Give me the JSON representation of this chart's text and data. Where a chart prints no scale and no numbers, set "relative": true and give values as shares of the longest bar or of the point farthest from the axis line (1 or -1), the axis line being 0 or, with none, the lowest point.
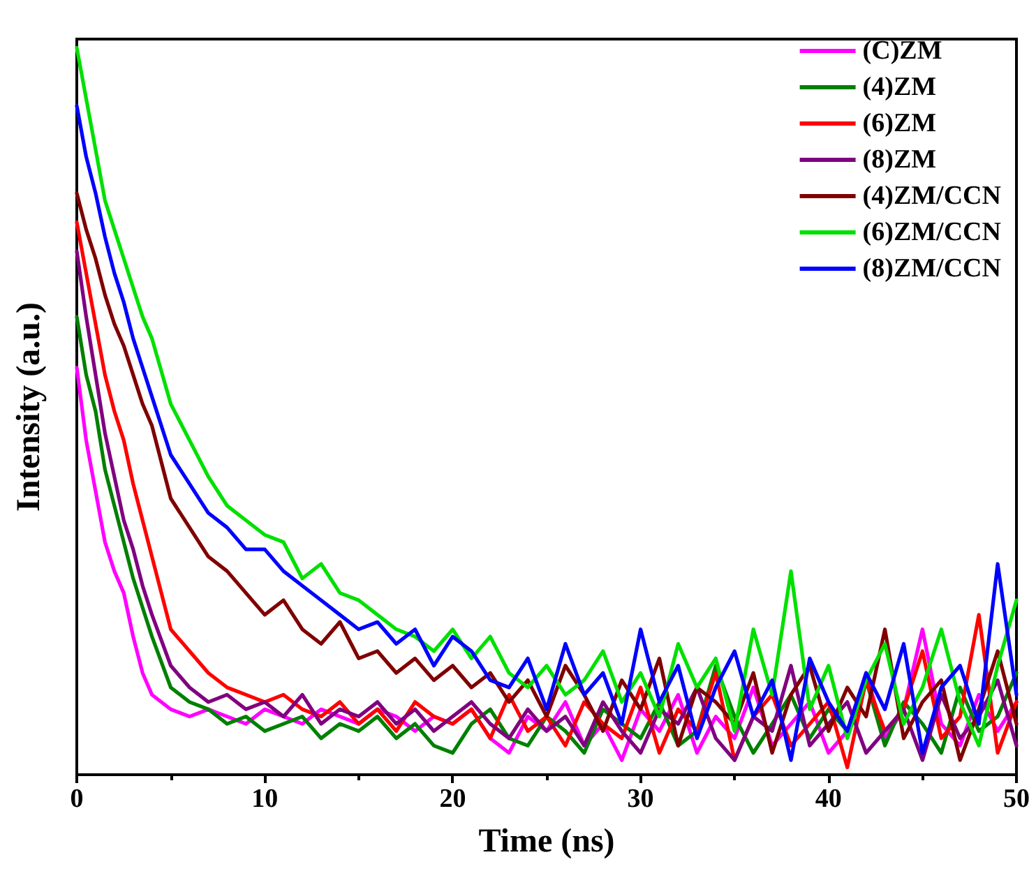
{
  "chart_data": {
    "type": "line",
    "relative": true,
    "xlabel": "Time (ns)",
    "ylabel": "Intensity (a.u.)",
    "xlim": [
      0,
      50
    ],
    "xticks": [
      0,
      10,
      20,
      30,
      40,
      50
    ],
    "grid": false,
    "legend": "top right",
    "marker": "none",
    "line_style": "solid",
    "x": [
      0,
      0.5,
      1,
      1.5,
      2,
      2.5,
      3,
      3.5,
      4,
      5,
      6,
      7,
      8,
      9,
      10,
      11,
      12,
      13,
      14,
      15,
      16,
      17,
      18,
      19,
      20,
      21,
      22,
      23,
      24,
      25,
      26,
      27,
      28,
      29,
      30,
      31,
      32,
      33,
      34,
      35,
      36,
      37,
      38,
      39,
      40,
      41,
      42,
      43,
      44,
      45,
      46,
      47,
      48,
      49,
      50
    ],
    "series": [
      {
        "name": "(C)ZM",
        "color": "#ff00ff",
        "values": [
          0.56,
          0.46,
          0.39,
          0.32,
          0.28,
          0.25,
          0.19,
          0.14,
          0.11,
          0.09,
          0.08,
          0.09,
          0.08,
          0.07,
          0.09,
          0.08,
          0.07,
          0.09,
          0.08,
          0.07,
          0.09,
          0.08,
          0.06,
          0.08,
          0.07,
          0.09,
          0.05,
          0.03,
          0.08,
          0.06,
          0.1,
          0.04,
          0.07,
          0.02,
          0.09,
          0.06,
          0.11,
          0.03,
          0.08,
          0.05,
          0.12,
          0.04,
          0.07,
          0.1,
          0.03,
          0.06,
          0.14,
          0.05,
          0.09,
          0.2,
          0.07,
          0.04,
          0.11,
          0.06,
          0.1
        ]
      },
      {
        "name": "(4)ZM",
        "color": "#008000",
        "values": [
          0.63,
          0.55,
          0.5,
          0.42,
          0.37,
          0.32,
          0.27,
          0.23,
          0.19,
          0.12,
          0.1,
          0.09,
          0.07,
          0.08,
          0.06,
          0.07,
          0.08,
          0.05,
          0.07,
          0.06,
          0.08,
          0.05,
          0.07,
          0.04,
          0.03,
          0.07,
          0.09,
          0.05,
          0.04,
          0.08,
          0.06,
          0.03,
          0.09,
          0.07,
          0.05,
          0.1,
          0.04,
          0.06,
          0.15,
          0.08,
          0.03,
          0.07,
          0.11,
          0.05,
          0.09,
          0.06,
          0.13,
          0.04,
          0.1,
          0.07,
          0.03,
          0.12,
          0.06,
          0.08,
          0.14
        ]
      },
      {
        "name": "(6)ZM",
        "color": "#ff0000",
        "values": [
          0.76,
          0.69,
          0.62,
          0.55,
          0.5,
          0.46,
          0.4,
          0.35,
          0.3,
          0.2,
          0.17,
          0.14,
          0.12,
          0.11,
          0.1,
          0.11,
          0.09,
          0.08,
          0.1,
          0.07,
          0.09,
          0.06,
          0.1,
          0.08,
          0.07,
          0.09,
          0.05,
          0.11,
          0.06,
          0.08,
          0.04,
          0.1,
          0.07,
          0.05,
          0.12,
          0.03,
          0.09,
          0.06,
          0.14,
          0.02,
          0.08,
          0.11,
          0.04,
          0.07,
          0.1,
          0.01,
          0.13,
          0.06,
          0.09,
          0.17,
          0.05,
          0.08,
          0.22,
          0.03,
          0.1
        ]
      },
      {
        "name": "(8)ZM",
        "color": "#800080",
        "values": [
          0.72,
          0.63,
          0.55,
          0.47,
          0.41,
          0.35,
          0.31,
          0.26,
          0.22,
          0.15,
          0.12,
          0.1,
          0.11,
          0.09,
          0.1,
          0.08,
          0.11,
          0.07,
          0.09,
          0.08,
          0.1,
          0.07,
          0.09,
          0.06,
          0.08,
          0.1,
          0.07,
          0.05,
          0.09,
          0.06,
          0.08,
          0.04,
          0.1,
          0.06,
          0.03,
          0.09,
          0.07,
          0.12,
          0.05,
          0.02,
          0.08,
          0.06,
          0.15,
          0.04,
          0.07,
          0.1,
          0.03,
          0.06,
          0.09,
          0.02,
          0.11,
          0.05,
          0.08,
          0.13,
          0.04
        ]
      },
      {
        "name": "(4)ZM/CCN",
        "color": "#800000",
        "values": [
          0.8,
          0.75,
          0.71,
          0.66,
          0.62,
          0.59,
          0.55,
          0.51,
          0.48,
          0.38,
          0.34,
          0.3,
          0.28,
          0.25,
          0.22,
          0.24,
          0.2,
          0.18,
          0.21,
          0.16,
          0.17,
          0.14,
          0.16,
          0.13,
          0.15,
          0.12,
          0.14,
          0.1,
          0.13,
          0.08,
          0.15,
          0.11,
          0.06,
          0.13,
          0.09,
          0.16,
          0.04,
          0.12,
          0.1,
          0.07,
          0.14,
          0.03,
          0.11,
          0.15,
          0.06,
          0.12,
          0.08,
          0.2,
          0.05,
          0.1,
          0.13,
          0.02,
          0.09,
          0.17,
          0.07
        ]
      },
      {
        "name": "(6)ZM/CCN",
        "color": "#00e000",
        "values": [
          1.0,
          0.93,
          0.86,
          0.79,
          0.75,
          0.71,
          0.67,
          0.63,
          0.6,
          0.51,
          0.46,
          0.41,
          0.37,
          0.35,
          0.33,
          0.32,
          0.27,
          0.29,
          0.25,
          0.24,
          0.22,
          0.2,
          0.19,
          0.17,
          0.2,
          0.16,
          0.19,
          0.14,
          0.12,
          0.15,
          0.11,
          0.13,
          0.17,
          0.1,
          0.14,
          0.08,
          0.18,
          0.12,
          0.16,
          0.06,
          0.2,
          0.11,
          0.28,
          0.09,
          0.15,
          0.05,
          0.13,
          0.18,
          0.07,
          0.12,
          0.2,
          0.1,
          0.04,
          0.15,
          0.24
        ]
      },
      {
        "name": "(8)ZM/CCN",
        "color": "#0000ff",
        "values": [
          0.92,
          0.85,
          0.8,
          0.74,
          0.69,
          0.65,
          0.6,
          0.56,
          0.52,
          0.44,
          0.4,
          0.36,
          0.34,
          0.31,
          0.31,
          0.28,
          0.26,
          0.24,
          0.22,
          0.2,
          0.21,
          0.18,
          0.2,
          0.15,
          0.19,
          0.17,
          0.13,
          0.12,
          0.16,
          0.09,
          0.18,
          0.11,
          0.14,
          0.07,
          0.2,
          0.1,
          0.15,
          0.05,
          0.12,
          0.17,
          0.08,
          0.13,
          0.02,
          0.16,
          0.1,
          0.06,
          0.14,
          0.09,
          0.18,
          0.03,
          0.12,
          0.15,
          0.07,
          0.29,
          0.11
        ]
      }
    ]
  }
}
